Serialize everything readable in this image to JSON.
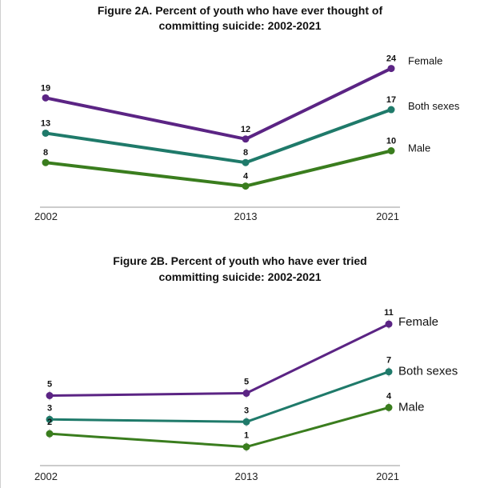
{
  "chart_data": [
    {
      "type": "line",
      "title": "Figure 2A. Percent of youth who have ever thought of committing suicide: 2002-2021",
      "title_lines": [
        "Figure 2A. Percent of youth who have ever thought of",
        "committing suicide: 2002-2021"
      ],
      "x": [
        "2002",
        "2013",
        "2021"
      ],
      "ylim": [
        0,
        26
      ],
      "legend_placement": "right",
      "series": [
        {
          "name": "Female",
          "values": [
            19,
            12,
            24
          ],
          "labels": [
            "19",
            "12",
            "24"
          ],
          "color": "#5b2484"
        },
        {
          "name": "Both sexes",
          "values": [
            13,
            8,
            17
          ],
          "labels": [
            "13",
            "8",
            "17"
          ],
          "color": "#1f7a6a"
        },
        {
          "name": "Male",
          "values": [
            8,
            4,
            10
          ],
          "labels": [
            "8",
            "4",
            "10"
          ],
          "color": "#3a7d1e"
        }
      ]
    },
    {
      "type": "line",
      "title": "Figure 2B. Percent of youth who have ever tried committing suicide: 2002-2021",
      "title_lines": [
        "Figure 2B. Percent of youth who have ever tried",
        "committing suicide: 2002-2021"
      ],
      "x": [
        "2002",
        "2013",
        "2021"
      ],
      "ylim": [
        0,
        12
      ],
      "legend_placement": "right",
      "series": [
        {
          "name": "Female",
          "values": [
            5,
            5.2,
            11
          ],
          "labels": [
            "5",
            "5",
            "11"
          ],
          "color": "#5b2484"
        },
        {
          "name": "Both sexes",
          "values": [
            3,
            2.8,
            7
          ],
          "labels": [
            "3",
            "3",
            "7"
          ],
          "color": "#1f7a6a"
        },
        {
          "name": "Male",
          "values": [
            1.8,
            0.7,
            4
          ],
          "labels": [
            "2",
            "1",
            "4"
          ],
          "color": "#3a7d1e"
        }
      ]
    }
  ]
}
